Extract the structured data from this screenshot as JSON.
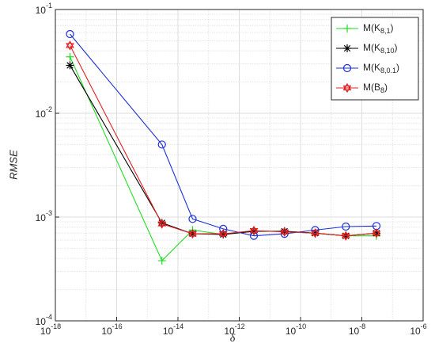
{
  "chart_data": {
    "type": "line",
    "log_x": true,
    "log_y": true,
    "grid": true,
    "legend": "upper right",
    "xlabel": "δ",
    "ylabel": "RMSE",
    "x": [
      3e-18,
      3e-15,
      3e-14,
      3e-13,
      3e-12,
      3e-11,
      3e-10,
      3e-09,
      3e-08
    ],
    "series": [
      {
        "name": "M(K8,1)",
        "color": "#22dd22",
        "marker": "plus",
        "values": [
          0.035,
          0.00038,
          0.00075,
          0.00068,
          0.00073,
          0.00073,
          0.0007,
          0.00066,
          0.00066
        ]
      },
      {
        "name": "M(K8,10)",
        "color": "#000000",
        "marker": "asterisk",
        "values": [
          0.029,
          0.00088,
          0.00069,
          0.00068,
          0.00073,
          0.00073,
          0.0007,
          0.00066,
          0.0007
        ]
      },
      {
        "name": "M(K8,0.1)",
        "color": "#1a2fd8",
        "marker": "circle",
        "values": [
          0.058,
          0.005,
          0.00096,
          0.00077,
          0.00066,
          0.00069,
          0.00075,
          0.00081,
          0.00082
        ]
      },
      {
        "name": "M(B8)",
        "color": "#e02020",
        "marker": "hexagram",
        "values": [
          0.045,
          0.00086,
          0.00069,
          0.00069,
          0.00074,
          0.00072,
          0.0007,
          0.00066,
          0.0007
        ]
      }
    ],
    "xlim": [
      1e-18,
      1e-06
    ],
    "xticks": [
      {
        "value": 1e-18,
        "label": "10-18"
      },
      {
        "value": 1e-16,
        "label": "10-16"
      },
      {
        "value": 1e-14,
        "label": "10-14"
      },
      {
        "value": 1e-12,
        "label": "10-12"
      },
      {
        "value": 1e-10,
        "label": "10-10"
      },
      {
        "value": 1e-08,
        "label": "10-8"
      },
      {
        "value": 1e-06,
        "label": "10-6"
      }
    ],
    "ylim": [
      0.0001,
      0.1
    ],
    "yticks": [
      {
        "value": 0.0001,
        "label": "10-4"
      },
      {
        "value": 0.001,
        "label": "10-3"
      },
      {
        "value": 0.01,
        "label": "10-2"
      },
      {
        "value": 0.1,
        "label": "10-1"
      }
    ]
  }
}
